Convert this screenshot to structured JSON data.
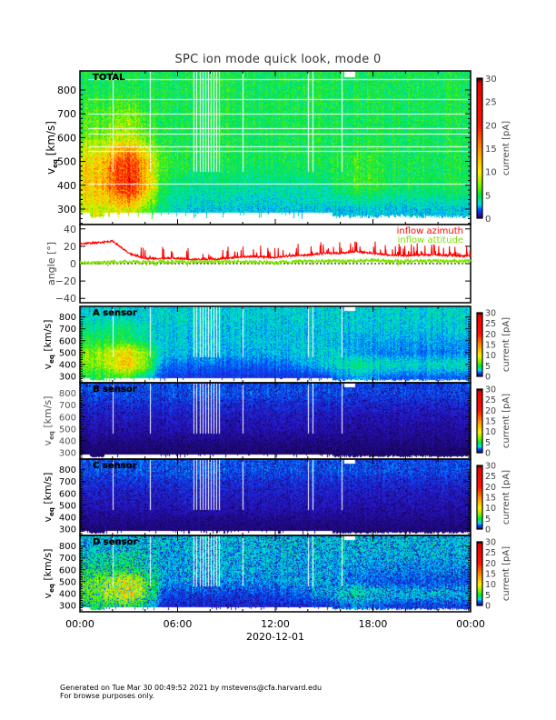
{
  "title": "SPC ion mode quick look, mode 0",
  "footer": {
    "line1": "Generated on Tue Mar 30 00:49:52 2021 by mstevens@cfa.harvard.edu",
    "line2": "For browse purposes only."
  },
  "chart_data": {
    "type": "heatmap",
    "x": {
      "label": "2020-12-01",
      "range_hours": [
        0,
        24
      ],
      "tick_hours": [
        0,
        6,
        12,
        18,
        24
      ],
      "tick_labels": [
        "00:00",
        "06:00",
        "12:00",
        "18:00",
        "00:00"
      ]
    },
    "velocity_bins_km_s": [
      300,
      400,
      500,
      600,
      700,
      800
    ],
    "time_bins_hours": [
      1,
      3,
      5,
      7,
      9,
      11,
      13,
      15,
      17,
      19,
      21,
      23
    ],
    "colorbar": {
      "label": "current [pA]",
      "range": [
        0,
        30
      ],
      "ticks": [
        "0",
        "5",
        "10",
        "15",
        "20",
        "25",
        "30"
      ]
    },
    "panels": [
      {
        "name": "TOTAL",
        "ylabel": "v_eq [km/s]",
        "yrange": [
          235,
          880
        ],
        "yticks": [
          "300",
          "400",
          "500",
          "600",
          "700",
          "800"
        ],
        "values": [
          [
            9,
            10,
            4,
            3,
            3,
            3,
            3,
            3,
            3,
            3,
            3,
            3
          ],
          [
            12,
            22,
            5,
            4,
            4,
            4,
            4,
            4,
            6,
            5,
            5,
            5
          ],
          [
            11,
            20,
            6,
            5,
            5,
            5,
            5,
            5,
            6,
            5,
            5,
            5
          ],
          [
            7,
            9,
            5,
            5,
            5,
            5,
            5,
            5,
            5,
            5,
            5,
            5
          ],
          [
            6,
            7,
            5,
            5,
            5,
            5,
            5,
            5,
            5,
            5,
            5,
            5
          ],
          [
            5,
            5,
            5,
            5,
            5,
            5,
            5,
            5,
            5,
            5,
            5,
            5
          ]
        ]
      },
      {
        "name": "A sensor",
        "ylabel": "v_eq [km/s]",
        "yrange": [
          245,
          890
        ],
        "yticks": [
          "300",
          "400",
          "500",
          "600",
          "700",
          "800"
        ],
        "values": [
          [
            5,
            6,
            1.6,
            1.5,
            1.5,
            1.5,
            1.5,
            1.6,
            2.8,
            2,
            2,
            2
          ],
          [
            7,
            12,
            2.2,
            2,
            2,
            2,
            2.2,
            3,
            4.2,
            3.4,
            3.4,
            3.4
          ],
          [
            7,
            11,
            3,
            2.8,
            2.8,
            2.8,
            3,
            3.2,
            2.6,
            2.2,
            2.2,
            2.2
          ],
          [
            5,
            5,
            3,
            3,
            3,
            3,
            3,
            3,
            2.6,
            2.6,
            2.6,
            2.6
          ],
          [
            4,
            4.5,
            3,
            3,
            3,
            3,
            3,
            3,
            3,
            3,
            3,
            3
          ],
          [
            3.2,
            3.2,
            3.2,
            3.2,
            3.2,
            3.2,
            3.2,
            3.2,
            3.2,
            3.2,
            3.2,
            3.2
          ]
        ]
      },
      {
        "name": "B sensor",
        "ylabel": "v_eq [km/s]",
        "yrange": [
          245,
          890
        ],
        "yticks": [
          "300",
          "400",
          "500",
          "600",
          "700",
          "800"
        ],
        "values": [
          [
            0.4,
            0.4,
            0.4,
            0.4,
            0.4,
            0.4,
            0.4,
            0.4,
            0.4,
            0.4,
            0.4,
            0.4
          ],
          [
            0.6,
            0.6,
            0.6,
            0.6,
            0.6,
            0.6,
            0.6,
            0.6,
            0.6,
            0.6,
            0.6,
            0.6
          ],
          [
            0.9,
            0.9,
            0.9,
            1.0,
            0.9,
            0.9,
            0.9,
            0.9,
            0.8,
            0.8,
            0.8,
            0.8
          ],
          [
            1.1,
            1.1,
            1.1,
            1.2,
            1.1,
            1.1,
            1.1,
            1.1,
            1.0,
            1.0,
            1.0,
            1.0
          ],
          [
            1.4,
            1.4,
            1.4,
            1.5,
            1.4,
            1.4,
            1.4,
            1.4,
            1.3,
            1.3,
            1.3,
            1.3
          ],
          [
            1.9,
            1.9,
            1.9,
            2.0,
            1.9,
            1.9,
            1.9,
            1.9,
            1.8,
            1.8,
            1.8,
            1.8
          ]
        ]
      },
      {
        "name": "C sensor",
        "ylabel": "v_eq [km/s]",
        "yrange": [
          245,
          890
        ],
        "yticks": [
          "300",
          "400",
          "500",
          "600",
          "700",
          "800"
        ],
        "values": [
          [
            0.5,
            0.5,
            0.5,
            0.5,
            0.5,
            0.5,
            0.5,
            0.5,
            0.5,
            0.5,
            0.5,
            0.5
          ],
          [
            0.7,
            0.7,
            0.7,
            0.7,
            0.7,
            0.7,
            0.7,
            0.7,
            0.7,
            0.7,
            0.7,
            0.7
          ],
          [
            1.0,
            1.0,
            1.0,
            1.1,
            1.0,
            1.0,
            1.0,
            1.0,
            0.9,
            0.9,
            0.9,
            0.9
          ],
          [
            1.2,
            1.2,
            1.2,
            1.3,
            1.2,
            1.2,
            1.2,
            1.2,
            1.1,
            1.1,
            1.1,
            1.1
          ],
          [
            1.5,
            1.5,
            1.5,
            1.6,
            1.5,
            1.5,
            1.5,
            1.5,
            1.4,
            1.4,
            1.4,
            1.4
          ],
          [
            2.0,
            2.0,
            2.0,
            2.1,
            2.0,
            2.0,
            2.0,
            2.0,
            1.9,
            1.9,
            1.9,
            1.9
          ]
        ]
      },
      {
        "name": "D sensor",
        "ylabel": "v_eq [km/s]",
        "yrange": [
          245,
          890
        ],
        "yticks": [
          "300",
          "400",
          "500",
          "600",
          "700",
          "800"
        ],
        "values": [
          [
            5,
            6,
            1.4,
            1.3,
            1.3,
            1.3,
            1.4,
            1.5,
            2.6,
            1.8,
            1.8,
            1.8
          ],
          [
            7,
            12,
            2,
            1.8,
            1.8,
            1.8,
            2,
            2.8,
            4,
            3.2,
            3.2,
            3.2
          ],
          [
            7,
            11,
            2.8,
            2.6,
            2.6,
            2.6,
            2.8,
            3,
            2.4,
            2,
            2,
            2
          ],
          [
            5,
            5,
            3,
            3,
            3,
            3,
            3,
            3,
            2.5,
            2.5,
            2.5,
            2.5
          ],
          [
            4,
            4.5,
            3,
            3,
            3,
            3,
            3,
            3,
            3,
            3,
            3,
            3
          ],
          [
            3.2,
            3.2,
            3.2,
            3.2,
            3.2,
            3.2,
            3.2,
            3.2,
            3.2,
            3.2,
            3.2,
            3.2
          ]
        ]
      }
    ],
    "angle_panel": {
      "type": "line",
      "ylabel": "angle [°]",
      "yrange": [
        -45,
        45
      ],
      "yticks": [
        "−40",
        "−20",
        "0",
        "20",
        "40"
      ],
      "x_hours": [
        0,
        1,
        2,
        3,
        4,
        5,
        6,
        7,
        8,
        9,
        10,
        11,
        12,
        13,
        14,
        15,
        16,
        17,
        18,
        19,
        20,
        21,
        22,
        23,
        24
      ],
      "series": [
        {
          "name": "inflow azimuth",
          "color": "#ff0000",
          "values": [
            23,
            24,
            26,
            12,
            6,
            6,
            6,
            5,
            5,
            6,
            8,
            8,
            7,
            9,
            10,
            12,
            12,
            14,
            12,
            10,
            9,
            10,
            10,
            9,
            9
          ]
        },
        {
          "name": "inflow attitude",
          "color": "#80e000",
          "values": [
            1,
            1,
            2,
            2,
            2,
            2,
            2,
            2,
            2,
            2,
            2,
            2,
            1,
            2,
            3,
            3,
            3,
            3,
            4,
            3,
            3,
            3,
            3,
            3,
            3
          ]
        }
      ]
    }
  }
}
